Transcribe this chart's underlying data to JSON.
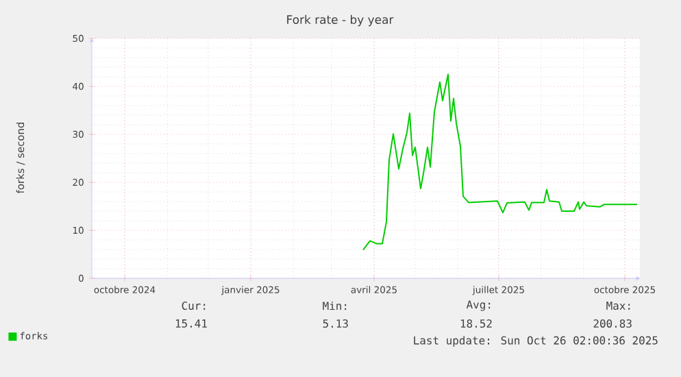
{
  "chart_data": {
    "type": "line",
    "title": "Fork rate - by year",
    "ylabel": "forks / second",
    "xlim": [
      "2024-09-07",
      "2025-10-12"
    ],
    "ylim": [
      0,
      50
    ],
    "yticks": [
      0,
      10,
      20,
      30,
      40,
      50
    ],
    "xticks": [
      {
        "value": "2024-10-01",
        "label": "octobre 2024"
      },
      {
        "value": "2025-01-01",
        "label": "janvier 2025"
      },
      {
        "value": "2025-04-01",
        "label": "avril 2025"
      },
      {
        "value": "2025-07-01",
        "label": "juillet 2025"
      },
      {
        "value": "2025-10-01",
        "label": "octobre 2025"
      }
    ],
    "x": [
      "2025-03-24",
      "2025-03-29",
      "2025-04-03",
      "2025-04-07",
      "2025-04-10",
      "2025-04-12",
      "2025-04-15",
      "2025-04-19",
      "2025-04-22",
      "2025-04-25",
      "2025-04-27",
      "2025-04-29",
      "2025-05-01",
      "2025-05-05",
      "2025-05-07",
      "2025-05-10",
      "2025-05-12",
      "2025-05-15",
      "2025-05-19",
      "2025-05-21",
      "2025-05-25",
      "2025-05-27",
      "2025-05-29",
      "2025-05-31",
      "2025-06-03",
      "2025-06-05",
      "2025-06-09",
      "2025-06-30",
      "2025-07-04",
      "2025-07-07",
      "2025-07-20",
      "2025-07-23",
      "2025-07-25",
      "2025-08-03",
      "2025-08-05",
      "2025-08-07",
      "2025-08-14",
      "2025-08-16",
      "2025-08-25",
      "2025-08-28",
      "2025-08-29",
      "2025-09-01",
      "2025-09-03",
      "2025-09-13",
      "2025-09-16",
      "2025-10-10"
    ],
    "series": [
      {
        "name": "forks",
        "color": "#00cc00",
        "values": [
          5.9,
          7.8,
          7.2,
          7.2,
          11.8,
          24.7,
          30.1,
          22.8,
          27.0,
          30.4,
          34.4,
          25.6,
          27.3,
          18.7,
          21.8,
          27.3,
          23.2,
          34.7,
          40.9,
          37.0,
          42.5,
          32.8,
          37.5,
          32.3,
          27.5,
          17.1,
          15.8,
          16.1,
          13.7,
          15.7,
          15.9,
          14.2,
          15.8,
          15.8,
          18.5,
          16.1,
          15.9,
          14.0,
          14.0,
          15.9,
          14.4,
          15.9,
          15.1,
          14.9,
          15.4,
          15.4
        ]
      }
    ],
    "grid": true,
    "legend": "bottom left",
    "marker": "none",
    "line_style": "solid",
    "annotations": [
      "Cur:",
      "15.41",
      "Min:",
      "5.13",
      "Avg:",
      "18.52",
      "Max:",
      "200.83",
      "Last update: Sun Oct 26 02:00:36 2025"
    ]
  }
}
